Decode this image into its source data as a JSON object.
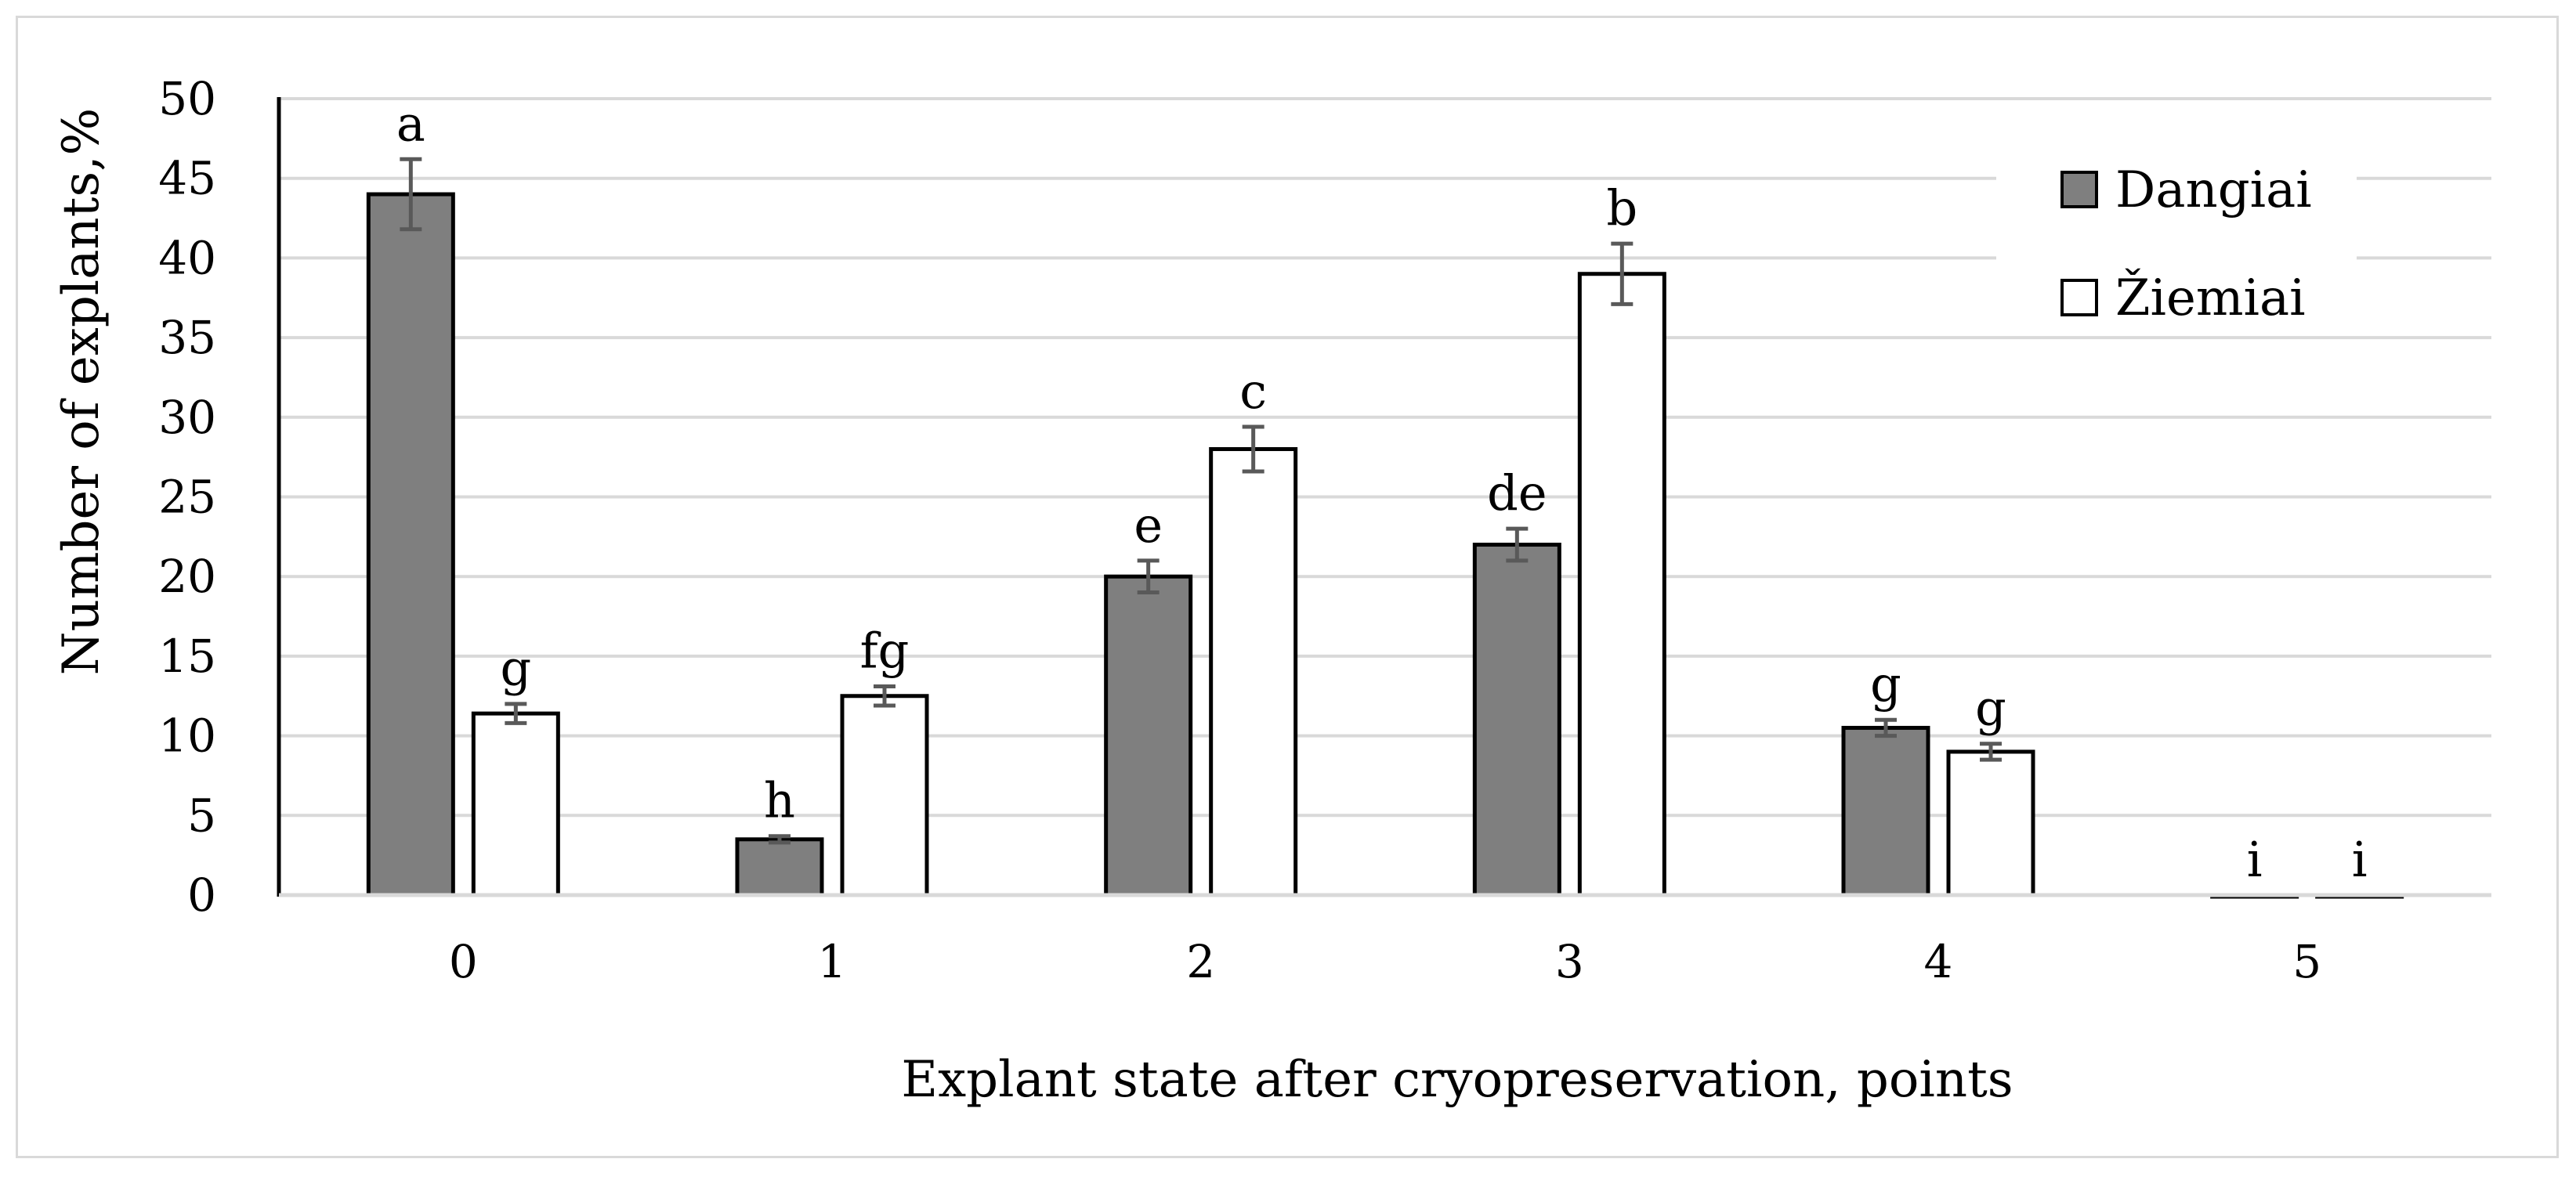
{
  "chart_data": {
    "type": "bar",
    "categories": [
      "0",
      "1",
      "2",
      "3",
      "4",
      "5"
    ],
    "series": [
      {
        "name": "Dangiai",
        "values": [
          44,
          3.5,
          20,
          22,
          10.5,
          0
        ],
        "errors": [
          2.2,
          0.2,
          1.0,
          1.0,
          0.5,
          0
        ],
        "labels": [
          "a",
          "h",
          "e",
          "de",
          "g",
          "i"
        ],
        "color": "#7f7f7f"
      },
      {
        "name": "Žiemiai",
        "values": [
          11.4,
          12.5,
          28,
          39,
          9,
          0
        ],
        "errors": [
          0.6,
          0.6,
          1.4,
          1.9,
          0.5,
          0
        ],
        "labels": [
          "g",
          "fg",
          "c",
          "b",
          "g",
          "i"
        ],
        "color": "#ffffff"
      }
    ],
    "xlabel": "Explant state after cryopreservation, points",
    "ylabel": "Number of explants,%",
    "ylim": [
      0,
      50
    ],
    "yticks": [
      0,
      5,
      10,
      15,
      20,
      25,
      30,
      35,
      40,
      45,
      50
    ],
    "grid": true,
    "legend_position": "top-right",
    "colors": {
      "gridline": "#d9d9d9",
      "axis": "#000000",
      "error_bar": "#595959"
    }
  }
}
